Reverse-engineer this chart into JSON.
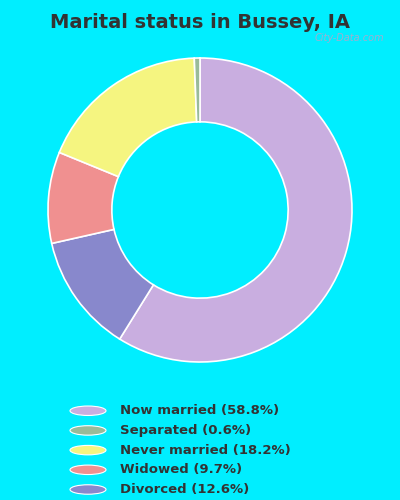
{
  "title": "Marital status in Bussey, IA",
  "title_fontsize": 14,
  "title_fontweight": "bold",
  "title_color": "#333333",
  "bg_outer": "#00eeff",
  "chart_bg_color": "#e8f5e9",
  "watermark": "City-Data.com",
  "slices": [
    58.8,
    12.6,
    9.7,
    18.2,
    0.6
  ],
  "labels": [
    "Now married (58.8%)",
    "Separated (0.6%)",
    "Never married (18.2%)",
    "Widowed (9.7%)",
    "Divorced (12.6%)"
  ],
  "colors": [
    "#c9aee0",
    "#8888cc",
    "#f09090",
    "#f5f580",
    "#99bb99"
  ],
  "legend_colors": [
    "#c9aee0",
    "#99bb99",
    "#f5f580",
    "#f09090",
    "#8888cc"
  ],
  "startangle": 90,
  "donut_width": 0.42
}
